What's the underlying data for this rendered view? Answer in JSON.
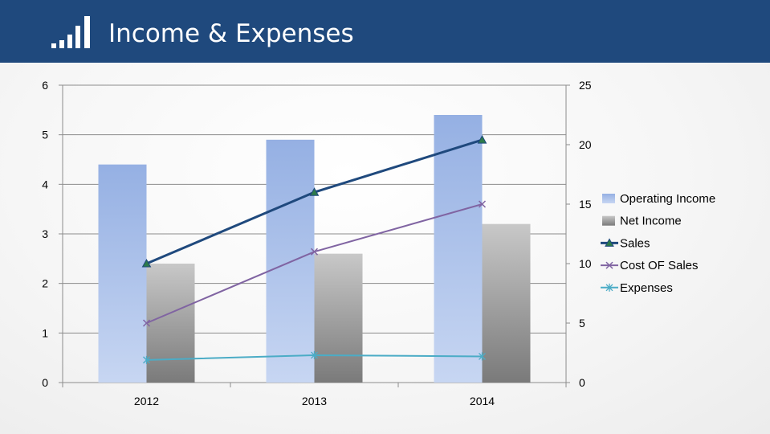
{
  "header": {
    "title": "Income & Expenses",
    "icon": "signal-bars-icon"
  },
  "colors": {
    "header_bg": "#1f497d",
    "operating_income": "#9bb4e6",
    "net_income": "#9a9a9a",
    "sales": "#1f497d",
    "cost_of_sales": "#8064a2",
    "expenses": "#4bacc6"
  },
  "chart_data": {
    "type": "bar",
    "categories": [
      "2012",
      "2013",
      "2014"
    ],
    "y_left": {
      "min": 0,
      "max": 6,
      "ticks": [
        "0",
        "1",
        "2",
        "3",
        "4",
        "5",
        "6"
      ]
    },
    "y_right": {
      "min": 0,
      "max": 25,
      "ticks": [
        "0",
        "5",
        "10",
        "15",
        "20",
        "25"
      ]
    },
    "grid": true,
    "legend_position": "right",
    "series": [
      {
        "name": "Operating Income",
        "kind": "bar",
        "axis": "left",
        "values": [
          4.4,
          4.9,
          5.4
        ]
      },
      {
        "name": "Net Income",
        "kind": "bar",
        "axis": "left",
        "values": [
          2.4,
          2.6,
          3.2
        ]
      },
      {
        "name": "Sales",
        "kind": "line",
        "axis": "right",
        "marker": "triangle",
        "values": [
          10,
          16,
          20.4
        ]
      },
      {
        "name": "Cost OF Sales",
        "kind": "line",
        "axis": "right",
        "marker": "x",
        "values": [
          5,
          11,
          15
        ]
      },
      {
        "name": "Expenses",
        "kind": "line",
        "axis": "right",
        "marker": "star",
        "values": [
          1.9,
          2.3,
          2.2
        ]
      }
    ]
  }
}
